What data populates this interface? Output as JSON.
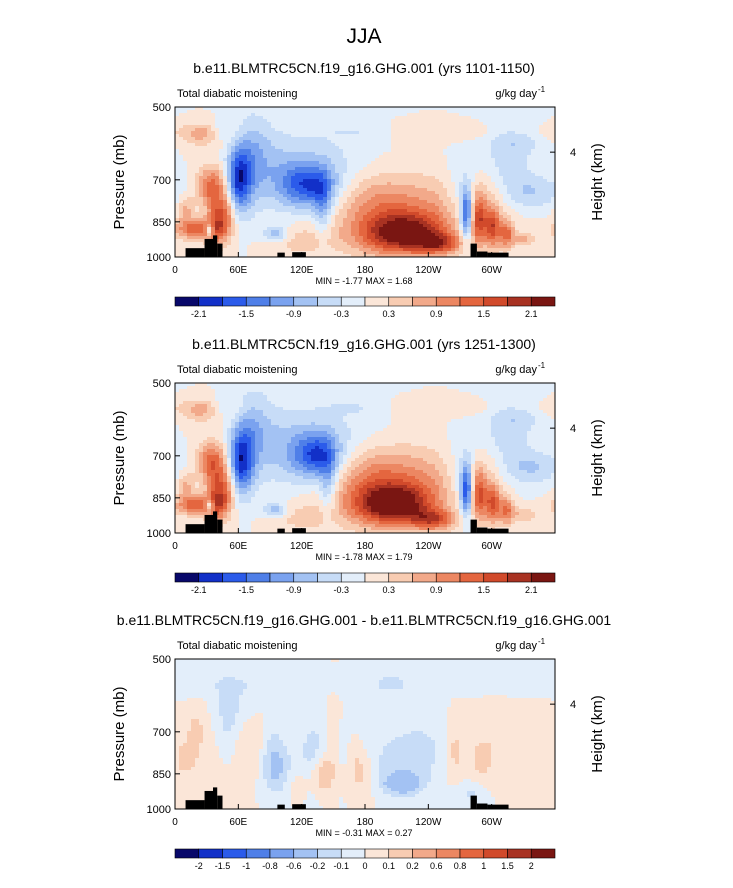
{
  "main_title": "JJA",
  "chart_data": [
    {
      "type": "heatmap",
      "title": "b.e11.BLMTRC5CN.f19_g16.GHG.001 (yrs 1101-1150)",
      "left_label": "Total diabatic moistening",
      "units_main": "g/kg day",
      "units_sup": "-1",
      "ylabel": "Pressure (mb)",
      "ylabel_right": "Height (km)",
      "y_ticks": [
        "500",
        "700",
        "850",
        "1000"
      ],
      "y_tick_values": [
        500,
        700,
        850,
        1000
      ],
      "right_ticks": [
        "4"
      ],
      "right_tick_pressure": [
        616
      ],
      "x_ticks": [
        "0",
        "60E",
        "120E",
        "180",
        "120W",
        "60W"
      ],
      "x_tick_values": [
        0,
        60,
        120,
        180,
        240,
        300
      ],
      "xlim": [
        0,
        360
      ],
      "ylim": [
        500,
        1000
      ],
      "y_scale": "log",
      "minmax_text": "MIN = -1.77   MAX =  1.68",
      "colorbar_labels": [
        "-2.1",
        "-1.5",
        "-0.9",
        "-0.3",
        "0.3",
        "0.9",
        "1.5",
        "2.1"
      ],
      "colorbar_colors": [
        "#08086a",
        "#1230c8",
        "#2b5bea",
        "#4f7fe8",
        "#7aa2ef",
        "#a3c2f3",
        "#c7dcf7",
        "#e3eefa",
        "#fbe6d8",
        "#f8ccb2",
        "#f2a98a",
        "#ec8762",
        "#e4663f",
        "#d14a2b",
        "#a83222",
        "#7a1612"
      ],
      "land_blocks": [
        [
          10,
          28,
          1000,
          960
        ],
        [
          28,
          36,
          1000,
          920
        ],
        [
          36,
          40,
          1000,
          905
        ],
        [
          40,
          45,
          1000,
          940
        ],
        [
          97,
          104,
          1000,
          980
        ],
        [
          111,
          124,
          1000,
          978
        ],
        [
          280,
          286,
          1000,
          940
        ],
        [
          286,
          296,
          1000,
          975
        ],
        [
          296,
          316,
          1000,
          980
        ]
      ],
      "blobs": [
        [
          42,
          560,
          7,
          0.35,
          -0.55
        ],
        [
          30,
          560,
          10,
          0.35,
          0.3
        ],
        [
          20,
          560,
          30,
          0.35,
          0.3
        ],
        [
          20,
          580,
          18,
          0.5,
          0.4
        ],
        [
          35,
          720,
          10,
          0.8,
          1.3
        ],
        [
          20,
          880,
          14,
          0.4,
          1.4
        ],
        [
          40,
          850,
          7,
          1.0,
          1.4
        ],
        [
          50,
          820,
          6,
          0.9,
          0.8
        ],
        [
          10,
          800,
          6,
          0.6,
          0.7
        ],
        [
          33,
          880,
          3,
          0.25,
          -1.5
        ],
        [
          60,
          700,
          8,
          1.3,
          -1.75
        ],
        [
          72,
          650,
          10,
          1.8,
          -0.6
        ],
        [
          82,
          600,
          15,
          1.4,
          -0.3
        ],
        [
          100,
          700,
          20,
          1.4,
          -0.45
        ],
        [
          128,
          720,
          18,
          0.9,
          -1.5
        ],
        [
          135,
          650,
          35,
          1.6,
          -0.4
        ],
        [
          140,
          800,
          6,
          1.2,
          -0.8
        ],
        [
          120,
          930,
          22,
          0.6,
          0.4
        ],
        [
          95,
          900,
          8,
          0.3,
          -0.9
        ],
        [
          215,
          900,
          28,
          0.8,
          1.9
        ],
        [
          220,
          820,
          50,
          1.5,
          1.0
        ],
        [
          190,
          760,
          20,
          1.0,
          0.3
        ],
        [
          250,
          940,
          15,
          0.4,
          1.2
        ],
        [
          255,
          560,
          60,
          0.35,
          0.25
        ],
        [
          178,
          560,
          25,
          0.3,
          -0.3
        ],
        [
          276,
          820,
          4,
          1.1,
          -1.8
        ],
        [
          272,
          760,
          12,
          1.5,
          -0.55
        ],
        [
          288,
          840,
          5,
          1.0,
          1.5
        ],
        [
          301,
          870,
          5,
          0.8,
          1.5
        ],
        [
          314,
          900,
          5,
          0.6,
          1.2
        ],
        [
          330,
          920,
          8,
          0.3,
          0.6
        ],
        [
          296,
          740,
          18,
          0.9,
          0.3
        ],
        [
          340,
          740,
          20,
          0.7,
          -0.6
        ],
        [
          335,
          580,
          25,
          0.6,
          -0.35
        ],
        [
          315,
          650,
          15,
          1.6,
          -0.5
        ]
      ]
    },
    {
      "type": "heatmap",
      "title": "b.e11.BLMTRC5CN.f19_g16.GHG.001 (yrs 1251-1300)",
      "left_label": "Total diabatic moistening",
      "units_main": "g/kg day",
      "units_sup": "-1",
      "ylabel": "Pressure (mb)",
      "ylabel_right": "Height (km)",
      "y_ticks": [
        "500",
        "700",
        "850",
        "1000"
      ],
      "y_tick_values": [
        500,
        700,
        850,
        1000
      ],
      "right_ticks": [
        "4"
      ],
      "right_tick_pressure": [
        616
      ],
      "x_ticks": [
        "0",
        "60E",
        "120E",
        "180",
        "120W",
        "60W"
      ],
      "x_tick_values": [
        0,
        60,
        120,
        180,
        240,
        300
      ],
      "xlim": [
        0,
        360
      ],
      "ylim": [
        500,
        1000
      ],
      "y_scale": "log",
      "minmax_text": "MIN = -1.78   MAX =  1.79",
      "colorbar_labels": [
        "-2.1",
        "-1.5",
        "-0.9",
        "-0.3",
        "0.3",
        "0.9",
        "1.5",
        "2.1"
      ],
      "colorbar_colors": [
        "#08086a",
        "#1230c8",
        "#2b5bea",
        "#4f7fe8",
        "#7aa2ef",
        "#a3c2f3",
        "#c7dcf7",
        "#e3eefa",
        "#fbe6d8",
        "#f8ccb2",
        "#f2a98a",
        "#ec8762",
        "#e4663f",
        "#d14a2b",
        "#a83222",
        "#7a1612"
      ],
      "land_blocks": [
        [
          10,
          28,
          1000,
          960
        ],
        [
          28,
          36,
          1000,
          920
        ],
        [
          36,
          40,
          1000,
          905
        ],
        [
          40,
          45,
          1000,
          940
        ],
        [
          97,
          104,
          1000,
          980
        ],
        [
          111,
          124,
          1000,
          978
        ],
        [
          280,
          286,
          1000,
          940
        ],
        [
          286,
          296,
          1000,
          975
        ],
        [
          296,
          316,
          1000,
          980
        ]
      ],
      "blobs": [
        [
          42,
          560,
          7,
          0.35,
          -0.55
        ],
        [
          30,
          560,
          10,
          0.35,
          0.3
        ],
        [
          20,
          560,
          30,
          0.35,
          0.3
        ],
        [
          20,
          580,
          18,
          0.5,
          0.4
        ],
        [
          35,
          720,
          10,
          0.8,
          1.4
        ],
        [
          20,
          880,
          14,
          0.4,
          1.4
        ],
        [
          40,
          850,
          7,
          1.0,
          1.5
        ],
        [
          50,
          820,
          6,
          0.9,
          0.8
        ],
        [
          10,
          800,
          6,
          0.6,
          0.7
        ],
        [
          33,
          880,
          3,
          0.25,
          -1.5
        ],
        [
          62,
          720,
          8,
          1.3,
          -1.75
        ],
        [
          72,
          650,
          10,
          1.8,
          -0.6
        ],
        [
          82,
          600,
          15,
          1.4,
          -0.3
        ],
        [
          105,
          700,
          20,
          1.4,
          -0.45
        ],
        [
          135,
          700,
          15,
          0.9,
          -1.5
        ],
        [
          140,
          650,
          35,
          1.6,
          -0.45
        ],
        [
          145,
          800,
          6,
          1.2,
          -0.8
        ],
        [
          120,
          930,
          22,
          0.6,
          0.4
        ],
        [
          95,
          900,
          8,
          0.3,
          -0.9
        ],
        [
          205,
          880,
          26,
          0.8,
          2.0
        ],
        [
          210,
          800,
          45,
          1.5,
          1.1
        ],
        [
          185,
          760,
          20,
          1.0,
          0.3
        ],
        [
          245,
          940,
          15,
          0.4,
          1.3
        ],
        [
          255,
          560,
          60,
          0.35,
          0.25
        ],
        [
          178,
          560,
          25,
          0.3,
          -0.3
        ],
        [
          276,
          820,
          4,
          1.1,
          -1.8
        ],
        [
          272,
          760,
          12,
          1.5,
          -0.55
        ],
        [
          288,
          840,
          5,
          1.0,
          1.5
        ],
        [
          301,
          870,
          5,
          0.8,
          1.5
        ],
        [
          314,
          900,
          5,
          0.6,
          1.2
        ],
        [
          330,
          920,
          8,
          0.3,
          0.6
        ],
        [
          296,
          740,
          18,
          0.9,
          0.3
        ],
        [
          340,
          740,
          20,
          0.7,
          -0.6
        ],
        [
          335,
          580,
          25,
          0.6,
          -0.35
        ],
        [
          315,
          650,
          15,
          1.6,
          -0.5
        ]
      ]
    },
    {
      "type": "heatmap",
      "title": "b.e11.BLMTRC5CN.f19_g16.GHG.001 - b.e11.BLMTRC5CN.f19_g16.GHG.001",
      "left_label": "Total diabatic moistening",
      "units_main": "g/kg day",
      "units_sup": "-1",
      "ylabel": "Pressure (mb)",
      "ylabel_right": "Height (km)",
      "y_ticks": [
        "500",
        "700",
        "850",
        "1000"
      ],
      "y_tick_values": [
        500,
        700,
        850,
        1000
      ],
      "right_ticks": [
        "4"
      ],
      "right_tick_pressure": [
        616
      ],
      "x_ticks": [
        "0",
        "60E",
        "120E",
        "180",
        "120W",
        "60W"
      ],
      "x_tick_values": [
        0,
        60,
        120,
        180,
        240,
        300
      ],
      "xlim": [
        0,
        360
      ],
      "ylim": [
        500,
        1000
      ],
      "y_scale": "log",
      "minmax_text": "MIN = -0.31   MAX =  0.27",
      "colorbar_labels": [
        "-2",
        "-1.5",
        "-1",
        "-0.8",
        "-0.6",
        "-0.2",
        "-0.1",
        "0",
        "0.1",
        "0.2",
        "0.6",
        "0.8",
        "1",
        "1.5",
        "2"
      ],
      "colorbar_colors": [
        "#08086a",
        "#1230c8",
        "#2b5bea",
        "#4f7fe8",
        "#7aa2ef",
        "#a3c2f3",
        "#c7dcf7",
        "#e3eefa",
        "#fbe6d8",
        "#f8ccb2",
        "#f2a98a",
        "#ec8762",
        "#e4663f",
        "#d14a2b",
        "#a83222",
        "#7a1612"
      ],
      "land_blocks": [
        [
          10,
          28,
          1000,
          960
        ],
        [
          28,
          36,
          1000,
          920
        ],
        [
          36,
          40,
          1000,
          905
        ],
        [
          40,
          45,
          1000,
          940
        ],
        [
          97,
          104,
          1000,
          980
        ],
        [
          111,
          124,
          1000,
          978
        ],
        [
          280,
          286,
          1000,
          940
        ],
        [
          286,
          296,
          1000,
          975
        ],
        [
          296,
          316,
          1000,
          980
        ]
      ],
      "blobs": [
        [
          40,
          560,
          80,
          0.5,
          -0.08
        ],
        [
          20,
          700,
          6,
          1.0,
          0.12
        ],
        [
          10,
          800,
          8,
          0.8,
          0.1
        ],
        [
          50,
          650,
          6,
          1.2,
          -0.12
        ],
        [
          60,
          620,
          15,
          1.0,
          -0.08
        ],
        [
          75,
          750,
          10,
          1.5,
          0.1
        ],
        [
          92,
          770,
          8,
          1.2,
          -0.15
        ],
        [
          100,
          850,
          12,
          1.0,
          -0.18
        ],
        [
          115,
          880,
          10,
          0.8,
          0.12
        ],
        [
          130,
          800,
          8,
          1.5,
          -0.12
        ],
        [
          140,
          850,
          8,
          0.8,
          0.25
        ],
        [
          155,
          750,
          25,
          1.5,
          -0.08
        ],
        [
          150,
          720,
          6,
          1.5,
          0.12
        ],
        [
          170,
          800,
          6,
          1.2,
          0.14
        ],
        [
          180,
          850,
          7,
          1.0,
          0.12
        ],
        [
          215,
          890,
          12,
          0.4,
          -0.3
        ],
        [
          218,
          820,
          22,
          1.2,
          -0.15
        ],
        [
          205,
          560,
          12,
          0.4,
          -0.15
        ],
        [
          240,
          720,
          25,
          1.2,
          -0.08
        ],
        [
          265,
          760,
          6,
          1.2,
          0.14
        ],
        [
          290,
          800,
          8,
          0.9,
          0.1
        ],
        [
          280,
          930,
          10,
          0.5,
          -0.12
        ],
        [
          320,
          740,
          40,
          1.5,
          0.08
        ]
      ]
    }
  ]
}
